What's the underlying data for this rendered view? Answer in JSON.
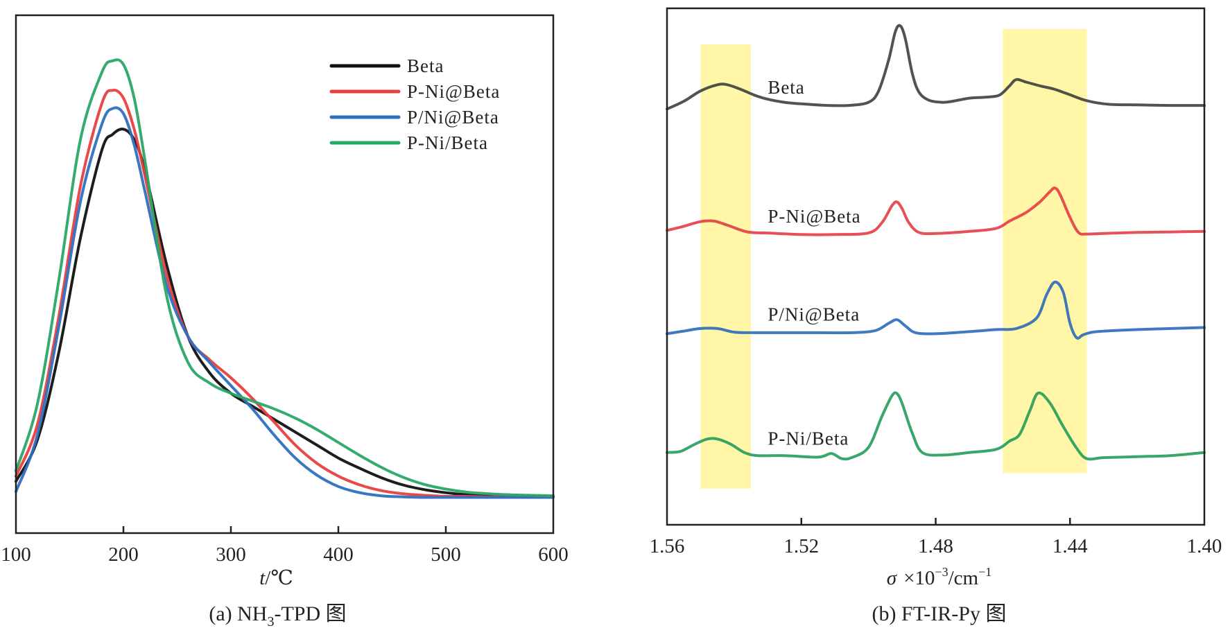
{
  "chart_data": [
    {
      "id": "a",
      "type": "line",
      "title": "",
      "caption": "(a) NH3-TPD 图",
      "caption_parts": {
        "prefix": "(a) NH",
        "sub": "3",
        "suffix": "-TPD 图"
      },
      "xlabel": "t/℃",
      "xlabel_parts": {
        "var": "t",
        "unit": "/℃"
      },
      "ylabel": "",
      "xlim": [
        100,
        600
      ],
      "ylim": [
        0,
        1
      ],
      "xticks": [
        100,
        200,
        300,
        400,
        500,
        600
      ],
      "xtick_labels": [
        "100",
        "200",
        "300",
        "400",
        "500",
        "600"
      ],
      "yticks": [],
      "grid": false,
      "legend_position": "top-right",
      "series": [
        {
          "name": "Beta",
          "color": "#111111",
          "x": [
            100,
            120,
            140,
            160,
            180,
            190,
            200,
            210,
            220,
            240,
            260,
            280,
            300,
            320,
            340,
            360,
            380,
            400,
            420,
            440,
            460,
            480,
            500,
            520,
            540,
            560,
            580,
            600
          ],
          "y": [
            0.1,
            0.18,
            0.35,
            0.57,
            0.74,
            0.77,
            0.78,
            0.76,
            0.7,
            0.52,
            0.38,
            0.31,
            0.27,
            0.245,
            0.22,
            0.195,
            0.17,
            0.145,
            0.125,
            0.107,
            0.093,
            0.084,
            0.078,
            0.074,
            0.072,
            0.071,
            0.071,
            0.071
          ]
        },
        {
          "name": "P-Ni@Beta",
          "color": "#e8403f",
          "x": [
            100,
            120,
            140,
            160,
            180,
            190,
            200,
            210,
            220,
            240,
            260,
            280,
            300,
            320,
            340,
            360,
            380,
            400,
            420,
            440,
            460,
            480,
            500,
            520,
            540,
            560,
            580,
            600
          ],
          "y": [
            0.11,
            0.21,
            0.42,
            0.67,
            0.83,
            0.855,
            0.84,
            0.78,
            0.69,
            0.5,
            0.38,
            0.335,
            0.3,
            0.26,
            0.215,
            0.17,
            0.135,
            0.11,
            0.093,
            0.082,
            0.076,
            0.073,
            0.071,
            0.071,
            0.07,
            0.07,
            0.07,
            0.07
          ]
        },
        {
          "name": "P/Ni@Beta",
          "color": "#2f6fc0",
          "x": [
            100,
            120,
            140,
            160,
            180,
            190,
            200,
            210,
            220,
            240,
            260,
            280,
            300,
            320,
            340,
            360,
            380,
            400,
            420,
            440,
            460,
            480,
            500,
            520,
            540,
            560,
            580,
            600
          ],
          "y": [
            0.08,
            0.19,
            0.4,
            0.64,
            0.79,
            0.82,
            0.81,
            0.75,
            0.66,
            0.48,
            0.38,
            0.33,
            0.285,
            0.24,
            0.19,
            0.145,
            0.112,
            0.09,
            0.078,
            0.072,
            0.07,
            0.069,
            0.069,
            0.069,
            0.069,
            0.069,
            0.069,
            0.069
          ]
        },
        {
          "name": "P-Ni/Beta",
          "color": "#2aa866",
          "x": [
            100,
            120,
            140,
            160,
            180,
            190,
            200,
            210,
            220,
            240,
            260,
            280,
            300,
            320,
            340,
            360,
            380,
            400,
            420,
            440,
            460,
            480,
            500,
            520,
            540,
            560,
            580,
            600
          ],
          "y": [
            0.12,
            0.25,
            0.49,
            0.76,
            0.89,
            0.912,
            0.905,
            0.84,
            0.72,
            0.46,
            0.33,
            0.29,
            0.27,
            0.255,
            0.24,
            0.222,
            0.2,
            0.175,
            0.15,
            0.127,
            0.108,
            0.094,
            0.085,
            0.079,
            0.076,
            0.074,
            0.073,
            0.072
          ]
        }
      ]
    },
    {
      "id": "b",
      "type": "line",
      "title": "",
      "caption": "(b) FT-IR-Py 图",
      "xlabel": "σ ×10⁻³/cm⁻¹",
      "xlabel_parts": {
        "var": "σ",
        "times": "×10",
        "exp1": "−3",
        "unit": "/cm",
        "exp2": "−1"
      },
      "ylabel": "",
      "xlim": [
        1.56,
        1.4
      ],
      "x_reversed": true,
      "ylim": [
        0,
        1
      ],
      "xticks": [
        1.56,
        1.52,
        1.48,
        1.44,
        1.4
      ],
      "xtick_labels": [
        "1.56",
        "1.52",
        "1.48",
        "1.44",
        "1.40"
      ],
      "yticks": [],
      "grid": false,
      "highlight_bands": [
        {
          "x_from": 1.55,
          "x_to": 1.535,
          "y_from": 0.07,
          "y_to": 0.93,
          "color": "#fff6a8"
        },
        {
          "x_from": 1.46,
          "x_to": 1.435,
          "y_from": 0.1,
          "y_to": 0.96,
          "color": "#fff6a8"
        }
      ],
      "series": [
        {
          "name": "Beta",
          "color": "#3a3a3a",
          "label_at": [
            1.53,
            0.835
          ],
          "x": [
            1.56,
            1.555,
            1.55,
            1.545,
            1.542,
            1.538,
            1.534,
            1.53,
            1.525,
            1.52,
            1.512,
            1.506,
            1.5,
            1.497,
            1.494,
            1.492,
            1.4905,
            1.489,
            1.487,
            1.485,
            1.482,
            1.478,
            1.475,
            1.47,
            1.465,
            1.461,
            1.458,
            1.456,
            1.453,
            1.449,
            1.445,
            1.441,
            1.436,
            1.432,
            1.428,
            1.42,
            1.41,
            1.4
          ],
          "y": [
            0.805,
            0.82,
            0.84,
            0.852,
            0.852,
            0.843,
            0.832,
            0.824,
            0.818,
            0.815,
            0.812,
            0.812,
            0.818,
            0.84,
            0.9,
            0.955,
            0.966,
            0.94,
            0.875,
            0.838,
            0.822,
            0.818,
            0.82,
            0.826,
            0.828,
            0.832,
            0.85,
            0.862,
            0.857,
            0.85,
            0.844,
            0.835,
            0.823,
            0.817,
            0.814,
            0.813,
            0.812,
            0.812
          ]
        },
        {
          "name": "P-Ni@Beta",
          "color": "#e3383f",
          "label_at": [
            1.53,
            0.585
          ],
          "x": [
            1.56,
            1.555,
            1.55,
            1.546,
            1.542,
            1.536,
            1.53,
            1.52,
            1.51,
            1.5,
            1.496,
            1.493,
            1.4915,
            1.49,
            1.488,
            1.485,
            1.48,
            1.47,
            1.462,
            1.458,
            1.453,
            1.449,
            1.446,
            1.4445,
            1.443,
            1.44,
            1.4375,
            1.435,
            1.43,
            1.42,
            1.41,
            1.4
          ],
          "y": [
            0.57,
            0.578,
            0.587,
            0.588,
            0.58,
            0.567,
            0.565,
            0.562,
            0.562,
            0.565,
            0.585,
            0.618,
            0.625,
            0.612,
            0.585,
            0.566,
            0.564,
            0.568,
            0.574,
            0.588,
            0.605,
            0.625,
            0.645,
            0.652,
            0.64,
            0.595,
            0.566,
            0.563,
            0.564,
            0.566,
            0.567,
            0.568
          ]
        },
        {
          "name": "P/Ni@Beta",
          "color": "#2566b8",
          "label_at": [
            1.53,
            0.395
          ],
          "x": [
            1.56,
            1.555,
            1.55,
            1.545,
            1.54,
            1.535,
            1.525,
            1.515,
            1.505,
            1.498,
            1.494,
            1.4915,
            1.489,
            1.486,
            1.48,
            1.47,
            1.462,
            1.456,
            1.45,
            1.447,
            1.4445,
            1.442,
            1.44,
            1.438,
            1.436,
            1.432,
            1.42,
            1.41,
            1.4
          ],
          "y": [
            0.37,
            0.375,
            0.38,
            0.38,
            0.373,
            0.372,
            0.372,
            0.372,
            0.372,
            0.376,
            0.39,
            0.397,
            0.385,
            0.372,
            0.37,
            0.374,
            0.378,
            0.38,
            0.4,
            0.445,
            0.47,
            0.45,
            0.39,
            0.362,
            0.368,
            0.374,
            0.378,
            0.38,
            0.382
          ]
        },
        {
          "name": "P-Ni/Beta",
          "color": "#1e9a56",
          "label_at": [
            1.53,
            0.155
          ],
          "x": [
            1.56,
            1.556,
            1.552,
            1.548,
            1.545,
            1.541,
            1.537,
            1.533,
            1.525,
            1.515,
            1.511,
            1.508,
            1.505,
            1.5,
            1.496,
            1.493,
            1.4915,
            1.49,
            1.487,
            1.484,
            1.478,
            1.47,
            1.462,
            1.458,
            1.455,
            1.452,
            1.4495,
            1.446,
            1.442,
            1.438,
            1.435,
            1.43,
            1.42,
            1.41,
            1.4
          ],
          "y": [
            0.14,
            0.142,
            0.155,
            0.166,
            0.166,
            0.156,
            0.14,
            0.134,
            0.134,
            0.131,
            0.138,
            0.128,
            0.13,
            0.15,
            0.21,
            0.25,
            0.254,
            0.235,
            0.178,
            0.14,
            0.135,
            0.14,
            0.146,
            0.162,
            0.175,
            0.22,
            0.255,
            0.236,
            0.19,
            0.148,
            0.128,
            0.13,
            0.132,
            0.134,
            0.14
          ]
        }
      ]
    }
  ]
}
